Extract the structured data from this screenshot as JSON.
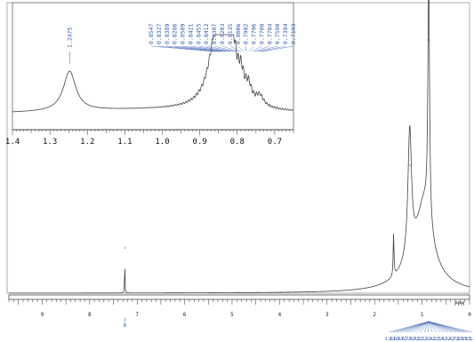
{
  "chart_data": [
    {
      "type": "line",
      "title": "",
      "xlabel": "PPM",
      "ylabel": "",
      "x_reversed": true,
      "xlim": [
        9.7,
        0.0
      ],
      "x_ticks": [
        "9",
        "8",
        "7",
        "6",
        "5",
        "4",
        "3",
        "2",
        "1",
        "0"
      ],
      "peaks": [
        {
          "x": 7.26,
          "height": 0.17
        },
        {
          "x": 1.6,
          "height": 0.16
        },
        {
          "x": 1.26,
          "height": 0.48
        },
        {
          "x": 0.86,
          "height": 0.95
        }
      ],
      "peak_label_bottom": "8",
      "integral_labels": [
        "1.8",
        "2.0",
        "1.6",
        "1.6",
        "1.7",
        "1.8",
        "1.9",
        "2.0",
        "2.1",
        "2.2",
        "2.4",
        "2.2",
        "2.3",
        "2.4",
        "2.5",
        "2.6",
        "2.7",
        "2.8",
        "2.9",
        "3.0",
        "3.1",
        "3.2"
      ]
    },
    {
      "type": "line",
      "title": "",
      "xlabel": "",
      "ylabel": "",
      "x_reversed": true,
      "xlim": [
        1.4,
        0.65
      ],
      "x_ticks": [
        "1.4",
        "1.3",
        "1.2",
        "1.1",
        "1.0",
        "0.9",
        "0.8",
        "0.7"
      ],
      "peak_labels": [
        "1.2475",
        "0.8547",
        "0.8327",
        "0.8389",
        "0.8286",
        "0.8509",
        "0.8421",
        "0.8455",
        "0.8412",
        "0.8307",
        "0.8203",
        "0.8135",
        "0.8006",
        "0.7982",
        "0.7796",
        "0.7708",
        "0.7704",
        "0.7590",
        "0.7394",
        "0.7193"
      ]
    }
  ]
}
